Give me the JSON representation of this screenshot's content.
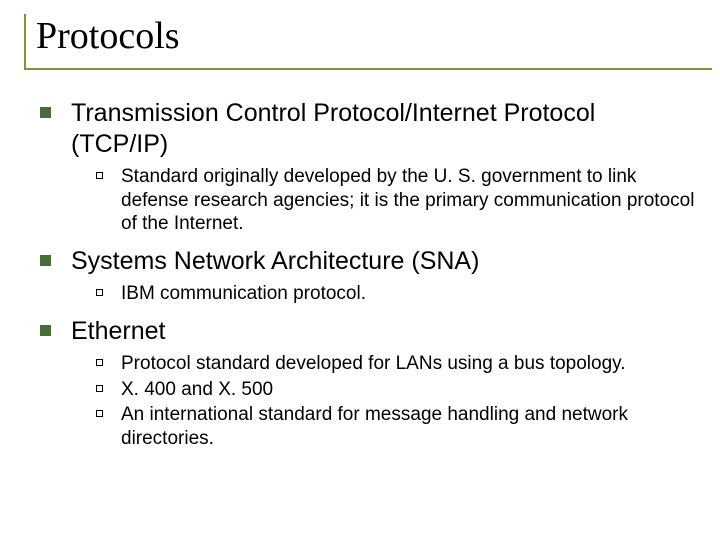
{
  "border_color": "#8a8f3a",
  "bullet1_color": "#4a6b3a",
  "title": "Protocols",
  "items": [
    {
      "label": "Transmission Control Protocol/Internet Protocol (TCP/IP)",
      "sub": [
        "Standard originally developed by the U. S. government to link defense research agencies; it is the primary communication protocol of the Internet."
      ]
    },
    {
      "label": "Systems Network Architecture (SNA)",
      "sub": [
        "IBM communication protocol."
      ]
    },
    {
      "label": "Ethernet",
      "sub": [
        "Protocol standard developed for  LANs using a bus topology.",
        "X. 400 and X. 500",
        "An international standard for message handling and network directories."
      ]
    }
  ]
}
